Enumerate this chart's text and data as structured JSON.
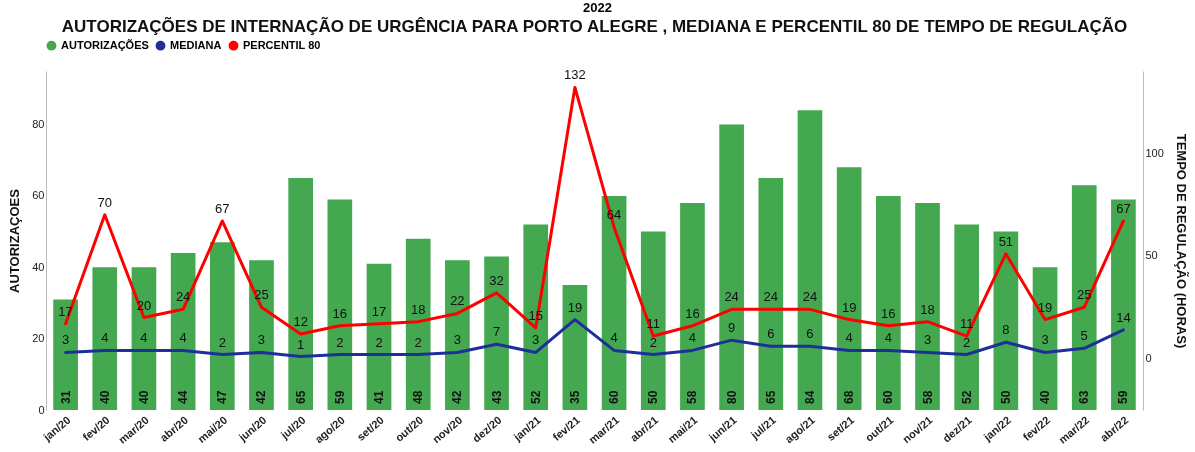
{
  "chart_data": {
    "type": "bar",
    "title": "AUTORIZAÇÕES DE INTERNAÇÃO DE URGÊNCIA PARA PORTO ALEGRE , MEDIANA E PERCENTIL 80 DE TEMPO DE REGULAÇÃO",
    "annotations": [
      "2022"
    ],
    "ylabel": "AUTORIZAÇOES",
    "y2label": "TEMPO DE REGULAÇÃO (HORAS)",
    "categories": [
      "jan/20",
      "fev/20",
      "mar/20",
      "abr/20",
      "mai/20",
      "jun/20",
      "jul/20",
      "ago/20",
      "set/20",
      "out/20",
      "nov/20",
      "dez/20",
      "jan/21",
      "fev/21",
      "mar/21",
      "abr/21",
      "mai/21",
      "jun/21",
      "jul/21",
      "ago/21",
      "set/21",
      "out/21",
      "nov/21",
      "dez/21",
      "jan/22",
      "fev/22",
      "mar/22",
      "abr/22"
    ],
    "series": [
      {
        "name": "AUTORIZAÇÕES",
        "color": "#43a84f",
        "values": [
          31,
          40,
          40,
          44,
          47,
          42,
          65,
          59,
          41,
          48,
          42,
          43,
          52,
          35,
          60,
          50,
          58,
          80,
          65,
          84,
          68,
          60,
          58,
          52,
          50,
          40,
          63,
          59
        ]
      },
      {
        "name": "MEDIANA",
        "type": "line",
        "axis": "y2",
        "color": "#1f2f9a",
        "values": [
          3,
          4,
          4,
          4,
          2,
          3,
          1,
          2,
          2,
          2,
          3,
          7,
          3,
          19,
          4,
          2,
          4,
          9,
          6,
          6,
          4,
          4,
          3,
          2,
          8,
          3,
          5,
          14
        ]
      },
      {
        "name": "PERCENTIL 80",
        "type": "line",
        "axis": "y2",
        "color": "#ff0000",
        "values": [
          17,
          70,
          20,
          24,
          67,
          25,
          12,
          16,
          17,
          18,
          22,
          32,
          15,
          132,
          64,
          11,
          16,
          24,
          24,
          24,
          19,
          16,
          18,
          11,
          51,
          19,
          25,
          67
        ]
      }
    ],
    "ylim": [
      0,
      95
    ],
    "yticks": [
      0,
      20,
      40,
      60,
      80
    ],
    "y2lim": [
      -25,
      140
    ],
    "y2ticks": [
      0,
      50,
      100
    ],
    "data_labels": true,
    "grid": false,
    "legend": "top left",
    "line_style": "solid"
  }
}
